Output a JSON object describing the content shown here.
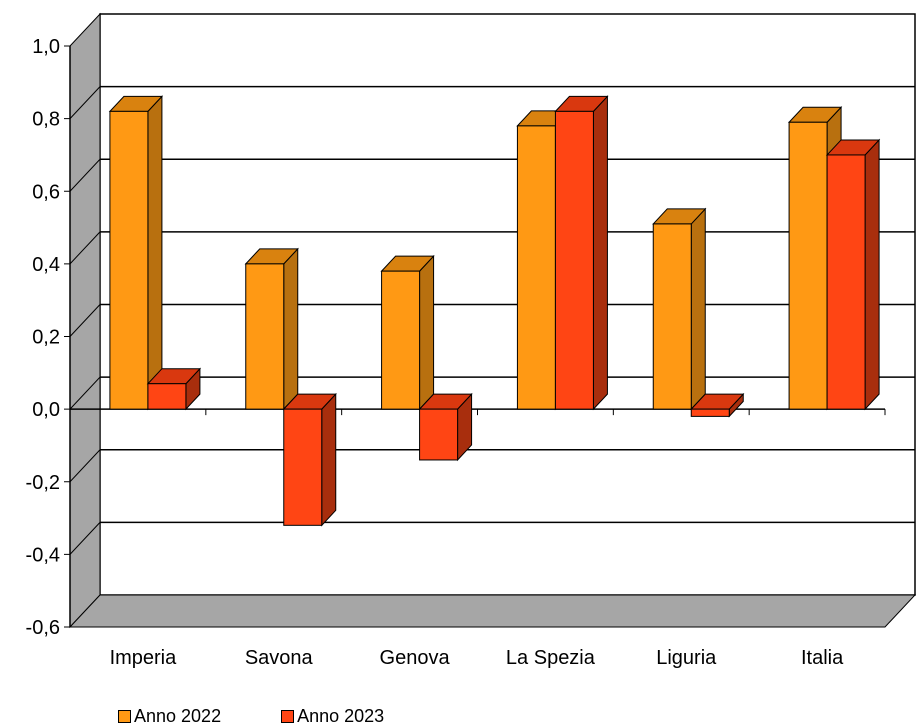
{
  "chart_data": {
    "type": "bar",
    "style": "3d-clustered-column",
    "categories": [
      "Imperia",
      "Savona",
      "Genova",
      "La Spezia",
      "Liguria",
      "Italia"
    ],
    "series": [
      {
        "name": "Anno 2022",
        "values": [
          0.82,
          0.4,
          0.38,
          0.78,
          0.51,
          0.79
        ],
        "color": "#FF9914",
        "side_color": "#B8700F",
        "top_color": "#D9820F"
      },
      {
        "name": "Anno 2023",
        "values": [
          0.07,
          -0.32,
          -0.14,
          0.82,
          -0.02,
          0.7
        ],
        "color": "#FF4514",
        "side_color": "#A82E0D",
        "top_color": "#D9380F"
      }
    ],
    "yticks": [
      "1,0",
      "0,8",
      "0,6",
      "0,4",
      "0,2",
      "0,0",
      "-0,2",
      "-0,4",
      "-0,6"
    ],
    "ylim": [
      -0.6,
      1.0
    ],
    "grid": true,
    "legend_position": "bottom",
    "wall_color": "#A6A6A6",
    "floor_color": "#A6A6A6"
  }
}
